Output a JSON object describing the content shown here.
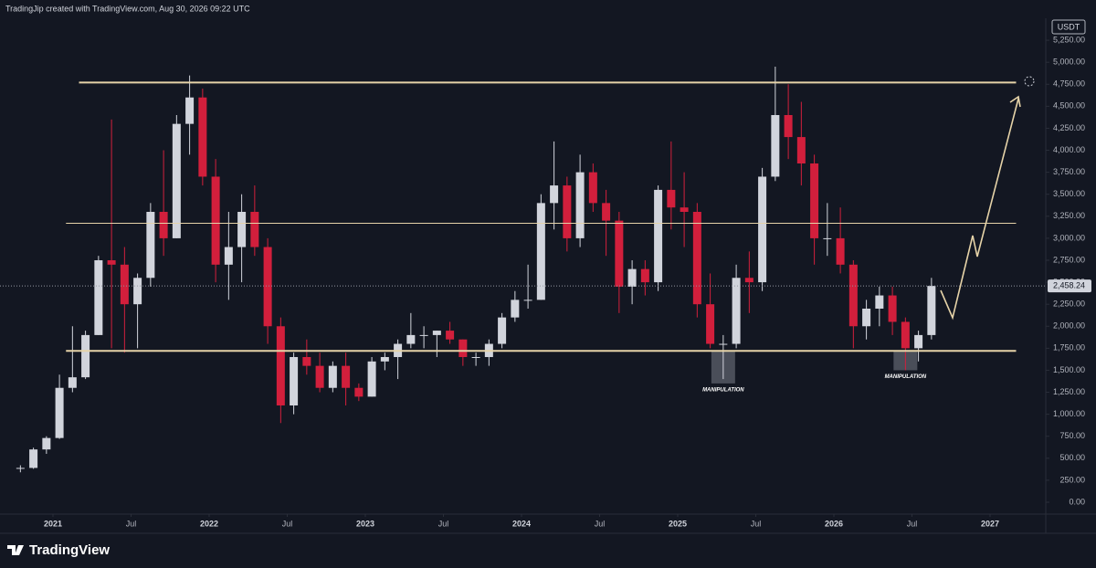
{
  "header": "TradingJip created with TradingView.com, Aug 30, 2026 09:22 UTC",
  "footer": "TradingView",
  "chart_data": {
    "type": "candlestick",
    "currency": "USDT",
    "x": [
      "2020-10",
      "2020-11",
      "2020-12",
      "2021-01",
      "2021-02",
      "2021-03",
      "2021-04",
      "2021-05",
      "2021-06",
      "2021-07",
      "2021-08",
      "2021-09",
      "2021-10",
      "2021-11",
      "2021-12",
      "2022-01",
      "2022-02",
      "2022-03",
      "2022-04",
      "2022-05",
      "2022-06",
      "2022-07",
      "2022-08",
      "2022-09",
      "2022-10",
      "2022-11",
      "2022-12",
      "2023-01",
      "2023-02",
      "2023-03",
      "2023-04",
      "2023-05",
      "2023-06",
      "2023-07",
      "2023-08",
      "2023-09",
      "2023-10",
      "2023-11",
      "2023-12",
      "2024-01",
      "2024-02",
      "2024-03",
      "2024-04",
      "2024-05",
      "2024-06",
      "2024-07",
      "2024-08",
      "2024-09",
      "2024-10",
      "2024-11",
      "2024-12",
      "2025-01",
      "2025-02",
      "2025-03",
      "2025-04",
      "2025-05",
      "2025-06",
      "2025-07",
      "2025-08",
      "2025-09",
      "2025-10",
      "2025-11",
      "2025-12",
      "2026-01",
      "2026-02",
      "2026-03",
      "2026-04",
      "2026-05",
      "2026-06",
      "2026-07",
      "2026-08"
    ],
    "open": [
      380,
      390,
      600,
      730,
      1300,
      1420,
      1900,
      2750,
      2700,
      2250,
      2550,
      3300,
      3000,
      4300,
      4600,
      3700,
      2700,
      2900,
      3300,
      2900,
      2000,
      1100,
      1650,
      1550,
      1300,
      1550,
      1300,
      1200,
      1600,
      1650,
      1800,
      1900,
      1900,
      1950,
      1850,
      1650,
      1650,
      1800,
      2100,
      2300,
      2300,
      3400,
      3600,
      3000,
      3750,
      3400,
      3200,
      2450,
      2650,
      2500,
      3550,
      3350,
      3300,
      2250,
      1800,
      1800,
      2550,
      2500,
      3700,
      4400,
      4150,
      3850,
      3000,
      3000,
      2700,
      2000,
      2200,
      2350,
      2050,
      1750,
      1900
    ],
    "high": [
      420,
      620,
      750,
      1450,
      2000,
      1950,
      2800,
      4350,
      2900,
      2600,
      3400,
      4000,
      4400,
      4850,
      4700,
      3900,
      3300,
      3500,
      3600,
      3000,
      2100,
      1700,
      1850,
      1700,
      1600,
      1700,
      1350,
      1650,
      1700,
      1850,
      2150,
      2000,
      1950,
      2050,
      1850,
      1700,
      1850,
      2150,
      2400,
      2700,
      3500,
      4100,
      3700,
      3950,
      3850,
      3550,
      3300,
      2750,
      2750,
      3600,
      4100,
      3750,
      3400,
      2600,
      1900,
      2700,
      2850,
      3800,
      4950,
      4750,
      4550,
      3950,
      3400,
      3350,
      2750,
      2300,
      2450,
      2450,
      2100,
      1950,
      2550
    ],
    "low": [
      340,
      380,
      550,
      720,
      1250,
      1400,
      1900,
      1750,
      1700,
      1750,
      2450,
      2800,
      3000,
      3950,
      3600,
      2500,
      2300,
      2500,
      2800,
      1800,
      900,
      1000,
      1450,
      1250,
      1250,
      1100,
      1150,
      1200,
      1500,
      1400,
      1750,
      1750,
      1650,
      1800,
      1550,
      1550,
      1550,
      1750,
      2050,
      2200,
      2300,
      3100,
      2850,
      2900,
      3300,
      2800,
      2150,
      2250,
      2350,
      2400,
      3100,
      2900,
      2100,
      1750,
      1400,
      1750,
      2150,
      2400,
      3650,
      3900,
      3600,
      2700,
      2800,
      2600,
      1750,
      1850,
      2000,
      1900,
      1500,
      1600,
      1850
    ],
    "close": [
      390,
      600,
      730,
      1300,
      1420,
      1900,
      2750,
      2700,
      2250,
      2550,
      3300,
      3000,
      4300,
      4600,
      3700,
      2700,
      2900,
      3300,
      2900,
      2000,
      1100,
      1650,
      1550,
      1300,
      1550,
      1300,
      1200,
      1600,
      1650,
      1800,
      1900,
      1900,
      1950,
      1850,
      1650,
      1650,
      1800,
      2100,
      2300,
      2300,
      3400,
      3600,
      3000,
      3750,
      3400,
      3200,
      2450,
      2650,
      2500,
      3550,
      3350,
      3300,
      2250,
      1800,
      1800,
      2550,
      2500,
      3700,
      4400,
      4150,
      3850,
      3000,
      3000,
      2700,
      2000,
      2200,
      2350,
      2050,
      1750,
      1900,
      2458.24
    ],
    "up_color": "#d1d4dc",
    "down_color": "#d21f3c",
    "last_price": {
      "value": 2458.24,
      "label": "2,458.24"
    },
    "ylim": [
      -135,
      5500
    ],
    "yticks": [
      {
        "value": 0,
        "label": "0.00"
      },
      {
        "value": 250,
        "label": "250.00"
      },
      {
        "value": 500,
        "label": "500.00"
      },
      {
        "value": 750,
        "label": "750.00"
      },
      {
        "value": 1000,
        "label": "1,000.00"
      },
      {
        "value": 1250,
        "label": "1,250.00"
      },
      {
        "value": 1500,
        "label": "1,500.00"
      },
      {
        "value": 1750,
        "label": "1,750.00"
      },
      {
        "value": 2000,
        "label": "2,000.00"
      },
      {
        "value": 2250,
        "label": "2,250.00"
      },
      {
        "value": 2500,
        "label": "2,500.00"
      },
      {
        "value": 2750,
        "label": "2,750.00"
      },
      {
        "value": 3000,
        "label": "3,000.00"
      },
      {
        "value": 3250,
        "label": "3,250.00"
      },
      {
        "value": 3500,
        "label": "3,500.00"
      },
      {
        "value": 3750,
        "label": "3,750.00"
      },
      {
        "value": 4000,
        "label": "4,000.00"
      },
      {
        "value": 4250,
        "label": "4,250.00"
      },
      {
        "value": 4500,
        "label": "4,500.00"
      },
      {
        "value": 4750,
        "label": "4,750.00"
      },
      {
        "value": 5000,
        "label": "5,000.00"
      },
      {
        "value": 5250,
        "label": "5,250.00"
      }
    ],
    "xticks": [
      {
        "value": "2021-01",
        "label": "2021"
      },
      {
        "value": "2021-07",
        "label": "Jul"
      },
      {
        "value": "2022-01",
        "label": "2022"
      },
      {
        "value": "2022-07",
        "label": "Jul"
      },
      {
        "value": "2023-01",
        "label": "2023"
      },
      {
        "value": "2023-07",
        "label": "Jul"
      },
      {
        "value": "2024-01",
        "label": "2024"
      },
      {
        "value": "2024-07",
        "label": "Jul"
      },
      {
        "value": "2025-01",
        "label": "2025"
      },
      {
        "value": "2025-07",
        "label": "Jul"
      },
      {
        "value": "2026-01",
        "label": "2026"
      },
      {
        "value": "2026-07",
        "label": "Jul"
      },
      {
        "value": "2027-01",
        "label": "2027"
      }
    ],
    "levels": [
      {
        "value": 4770,
        "start": "2021-03",
        "end": "2027-03",
        "color": "#e6d3a8"
      },
      {
        "value": 3170,
        "start": "2021-02",
        "end": "2027-03",
        "color": "#e6d3a8"
      },
      {
        "value": 1720,
        "start": "2021-02",
        "end": "2027-03",
        "color": "#e6d3a8"
      }
    ],
    "annotations": [
      {
        "text": "MANIPULATION",
        "x": "2025-04",
        "range": [
          1350,
          1720
        ]
      },
      {
        "text": "MANIPULATION",
        "x": "2026-06",
        "range": [
          1500,
          1720
        ]
      }
    ]
  }
}
